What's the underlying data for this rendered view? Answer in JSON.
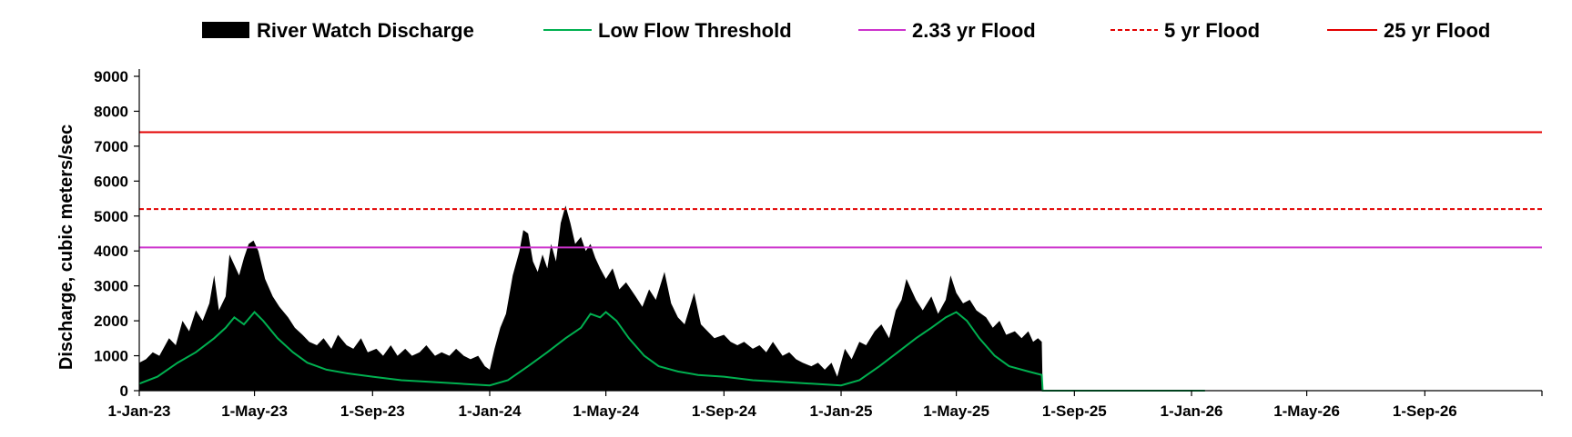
{
  "chart_data": {
    "type": "area",
    "title": "",
    "xlabel": "",
    "ylabel": "Discharge, cubic meters/sec",
    "x_range": [
      "2023-01-01",
      "2026-12-31"
    ],
    "ylim": [
      0,
      9000
    ],
    "y_ticks": [
      0,
      1000,
      2000,
      3000,
      4000,
      5000,
      6000,
      7000,
      8000,
      9000
    ],
    "y_tick_labels": [
      "0",
      "1000",
      "2000",
      "3000",
      "4000",
      "5000",
      "6000",
      "7000",
      "8000",
      "9000"
    ],
    "x_ticks": [
      "2023-01-01",
      "2023-05-01",
      "2023-09-01",
      "2024-01-01",
      "2024-05-01",
      "2024-09-01",
      "2025-01-01",
      "2025-05-01",
      "2025-09-01",
      "2026-01-01",
      "2026-05-01",
      "2026-09-01"
    ],
    "x_tick_labels": [
      "1-Jan-23",
      "1-May-23",
      "1-Sep-23",
      "1-Jan-24",
      "1-May-24",
      "1-Sep-24",
      "1-Jan-25",
      "1-May-25",
      "1-Sep-25",
      "1-Jan-26",
      "1-May-26",
      "1-Sep-26"
    ],
    "grid": false,
    "legend": {
      "position": "top"
    },
    "legend_entries": [
      "River Watch Discharge",
      "Low Flow Threshold",
      "2.33 yr Flood",
      "5 yr Flood",
      "25 yr Flood"
    ],
    "colors": {
      "discharge": "#000000",
      "low_flow": "#00b050",
      "flood_2_33": "#cc33cc",
      "flood_5": "#e30000",
      "flood_25": "#e30000"
    },
    "reference_lines": [
      {
        "name": "2.33 yr Flood",
        "value": 4100,
        "style": "solid"
      },
      {
        "name": "5 yr Flood",
        "value": 5200,
        "style": "dashed"
      },
      {
        "name": "25 yr Flood",
        "value": 7400,
        "style": "solid"
      }
    ],
    "series": [
      {
        "name": "River Watch Discharge",
        "type": "area",
        "points": [
          [
            "2023-01-01",
            800
          ],
          [
            "2023-01-08",
            900
          ],
          [
            "2023-01-15",
            1100
          ],
          [
            "2023-01-22",
            1000
          ],
          [
            "2023-02-01",
            1500
          ],
          [
            "2023-02-08",
            1300
          ],
          [
            "2023-02-15",
            2000
          ],
          [
            "2023-02-22",
            1700
          ],
          [
            "2023-03-01",
            2300
          ],
          [
            "2023-03-08",
            2000
          ],
          [
            "2023-03-15",
            2500
          ],
          [
            "2023-03-20",
            3300
          ],
          [
            "2023-03-25",
            2300
          ],
          [
            "2023-04-01",
            2700
          ],
          [
            "2023-04-05",
            3900
          ],
          [
            "2023-04-10",
            3600
          ],
          [
            "2023-04-15",
            3300
          ],
          [
            "2023-04-20",
            3800
          ],
          [
            "2023-04-25",
            4200
          ],
          [
            "2023-04-30",
            4300
          ],
          [
            "2023-05-05",
            4000
          ],
          [
            "2023-05-12",
            3200
          ],
          [
            "2023-05-20",
            2700
          ],
          [
            "2023-05-27",
            2400
          ],
          [
            "2023-06-05",
            2100
          ],
          [
            "2023-06-12",
            1800
          ],
          [
            "2023-06-20",
            1600
          ],
          [
            "2023-06-27",
            1400
          ],
          [
            "2023-07-05",
            1300
          ],
          [
            "2023-07-12",
            1500
          ],
          [
            "2023-07-20",
            1200
          ],
          [
            "2023-07-27",
            1600
          ],
          [
            "2023-08-05",
            1300
          ],
          [
            "2023-08-12",
            1200
          ],
          [
            "2023-08-20",
            1500
          ],
          [
            "2023-08-27",
            1100
          ],
          [
            "2023-09-05",
            1200
          ],
          [
            "2023-09-12",
            1000
          ],
          [
            "2023-09-20",
            1300
          ],
          [
            "2023-09-27",
            1000
          ],
          [
            "2023-10-05",
            1200
          ],
          [
            "2023-10-12",
            1000
          ],
          [
            "2023-10-20",
            1100
          ],
          [
            "2023-10-27",
            1300
          ],
          [
            "2023-11-05",
            1000
          ],
          [
            "2023-11-12",
            1100
          ],
          [
            "2023-11-20",
            1000
          ],
          [
            "2023-11-27",
            1200
          ],
          [
            "2023-12-05",
            1000
          ],
          [
            "2023-12-12",
            900
          ],
          [
            "2023-12-20",
            1000
          ],
          [
            "2023-12-27",
            700
          ],
          [
            "2024-01-01",
            600
          ],
          [
            "2024-01-06",
            1200
          ],
          [
            "2024-01-12",
            1800
          ],
          [
            "2024-01-18",
            2200
          ],
          [
            "2024-01-25",
            3300
          ],
          [
            "2024-02-01",
            4000
          ],
          [
            "2024-02-05",
            4600
          ],
          [
            "2024-02-10",
            4500
          ],
          [
            "2024-02-15",
            3700
          ],
          [
            "2024-02-20",
            3400
          ],
          [
            "2024-02-25",
            3900
          ],
          [
            "2024-03-01",
            3500
          ],
          [
            "2024-03-05",
            4200
          ],
          [
            "2024-03-10",
            3700
          ],
          [
            "2024-03-15",
            4800
          ],
          [
            "2024-03-20",
            5300
          ],
          [
            "2024-03-25",
            4800
          ],
          [
            "2024-03-30",
            4200
          ],
          [
            "2024-04-05",
            4400
          ],
          [
            "2024-04-10",
            4000
          ],
          [
            "2024-04-15",
            4200
          ],
          [
            "2024-04-20",
            3800
          ],
          [
            "2024-04-25",
            3500
          ],
          [
            "2024-05-01",
            3200
          ],
          [
            "2024-05-08",
            3500
          ],
          [
            "2024-05-15",
            2900
          ],
          [
            "2024-05-22",
            3100
          ],
          [
            "2024-06-01",
            2700
          ],
          [
            "2024-06-08",
            2400
          ],
          [
            "2024-06-15",
            2900
          ],
          [
            "2024-06-22",
            2600
          ],
          [
            "2024-07-01",
            3400
          ],
          [
            "2024-07-08",
            2500
          ],
          [
            "2024-07-15",
            2100
          ],
          [
            "2024-07-22",
            1900
          ],
          [
            "2024-08-01",
            2800
          ],
          [
            "2024-08-08",
            1900
          ],
          [
            "2024-08-15",
            1700
          ],
          [
            "2024-08-22",
            1500
          ],
          [
            "2024-09-01",
            1600
          ],
          [
            "2024-09-08",
            1400
          ],
          [
            "2024-09-15",
            1300
          ],
          [
            "2024-09-22",
            1400
          ],
          [
            "2024-10-01",
            1200
          ],
          [
            "2024-10-08",
            1300
          ],
          [
            "2024-10-15",
            1100
          ],
          [
            "2024-10-22",
            1400
          ],
          [
            "2024-11-01",
            1000
          ],
          [
            "2024-11-08",
            1100
          ],
          [
            "2024-11-15",
            900
          ],
          [
            "2024-11-22",
            800
          ],
          [
            "2024-12-01",
            700
          ],
          [
            "2024-12-08",
            800
          ],
          [
            "2024-12-15",
            600
          ],
          [
            "2024-12-22",
            800
          ],
          [
            "2024-12-28",
            400
          ],
          [
            "2025-01-05",
            1200
          ],
          [
            "2025-01-12",
            900
          ],
          [
            "2025-01-20",
            1400
          ],
          [
            "2025-01-27",
            1300
          ],
          [
            "2025-02-05",
            1700
          ],
          [
            "2025-02-12",
            1900
          ],
          [
            "2025-02-20",
            1500
          ],
          [
            "2025-02-27",
            2300
          ],
          [
            "2025-03-05",
            2600
          ],
          [
            "2025-03-10",
            3200
          ],
          [
            "2025-03-15",
            2900
          ],
          [
            "2025-03-20",
            2600
          ],
          [
            "2025-03-27",
            2300
          ],
          [
            "2025-04-05",
            2700
          ],
          [
            "2025-04-12",
            2200
          ],
          [
            "2025-04-20",
            2600
          ],
          [
            "2025-04-25",
            3300
          ],
          [
            "2025-05-01",
            2800
          ],
          [
            "2025-05-08",
            2500
          ],
          [
            "2025-05-15",
            2600
          ],
          [
            "2025-05-22",
            2300
          ],
          [
            "2025-06-01",
            2100
          ],
          [
            "2025-06-08",
            1800
          ],
          [
            "2025-06-15",
            2000
          ],
          [
            "2025-06-22",
            1600
          ],
          [
            "2025-07-01",
            1700
          ],
          [
            "2025-07-08",
            1500
          ],
          [
            "2025-07-15",
            1700
          ],
          [
            "2025-07-20",
            1400
          ],
          [
            "2025-07-25",
            1500
          ],
          [
            "2025-07-29",
            1400
          ],
          [
            "2025-07-30",
            0
          ]
        ]
      },
      {
        "name": "Low Flow Threshold",
        "type": "line",
        "points": [
          [
            "2023-01-01",
            200
          ],
          [
            "2023-01-20",
            400
          ],
          [
            "2023-02-10",
            800
          ],
          [
            "2023-03-01",
            1100
          ],
          [
            "2023-03-20",
            1500
          ],
          [
            "2023-04-01",
            1800
          ],
          [
            "2023-04-10",
            2100
          ],
          [
            "2023-04-20",
            1900
          ],
          [
            "2023-05-01",
            2250
          ],
          [
            "2023-05-10",
            2000
          ],
          [
            "2023-05-25",
            1500
          ],
          [
            "2023-06-10",
            1100
          ],
          [
            "2023-06-25",
            800
          ],
          [
            "2023-07-15",
            600
          ],
          [
            "2023-08-05",
            500
          ],
          [
            "2023-09-01",
            400
          ],
          [
            "2023-10-01",
            300
          ],
          [
            "2023-11-01",
            250
          ],
          [
            "2023-12-01",
            200
          ],
          [
            "2024-01-01",
            150
          ],
          [
            "2024-01-20",
            300
          ],
          [
            "2024-02-10",
            700
          ],
          [
            "2024-03-01",
            1100
          ],
          [
            "2024-03-20",
            1500
          ],
          [
            "2024-04-05",
            1800
          ],
          [
            "2024-04-15",
            2200
          ],
          [
            "2024-04-25",
            2100
          ],
          [
            "2024-05-01",
            2250
          ],
          [
            "2024-05-12",
            2000
          ],
          [
            "2024-05-25",
            1500
          ],
          [
            "2024-06-10",
            1000
          ],
          [
            "2024-06-25",
            700
          ],
          [
            "2024-07-15",
            550
          ],
          [
            "2024-08-05",
            450
          ],
          [
            "2024-09-01",
            400
          ],
          [
            "2024-10-01",
            300
          ],
          [
            "2024-11-01",
            250
          ],
          [
            "2024-12-01",
            200
          ],
          [
            "2025-01-01",
            150
          ],
          [
            "2025-01-20",
            300
          ],
          [
            "2025-02-10",
            700
          ],
          [
            "2025-03-01",
            1100
          ],
          [
            "2025-03-20",
            1500
          ],
          [
            "2025-04-05",
            1800
          ],
          [
            "2025-04-20",
            2100
          ],
          [
            "2025-05-01",
            2250
          ],
          [
            "2025-05-12",
            2000
          ],
          [
            "2025-05-25",
            1500
          ],
          [
            "2025-06-10",
            1000
          ],
          [
            "2025-06-25",
            700
          ],
          [
            "2025-07-15",
            550
          ],
          [
            "2025-07-29",
            450
          ],
          [
            "2025-07-30",
            0
          ],
          [
            "2026-01-15",
            0
          ]
        ]
      }
    ]
  }
}
